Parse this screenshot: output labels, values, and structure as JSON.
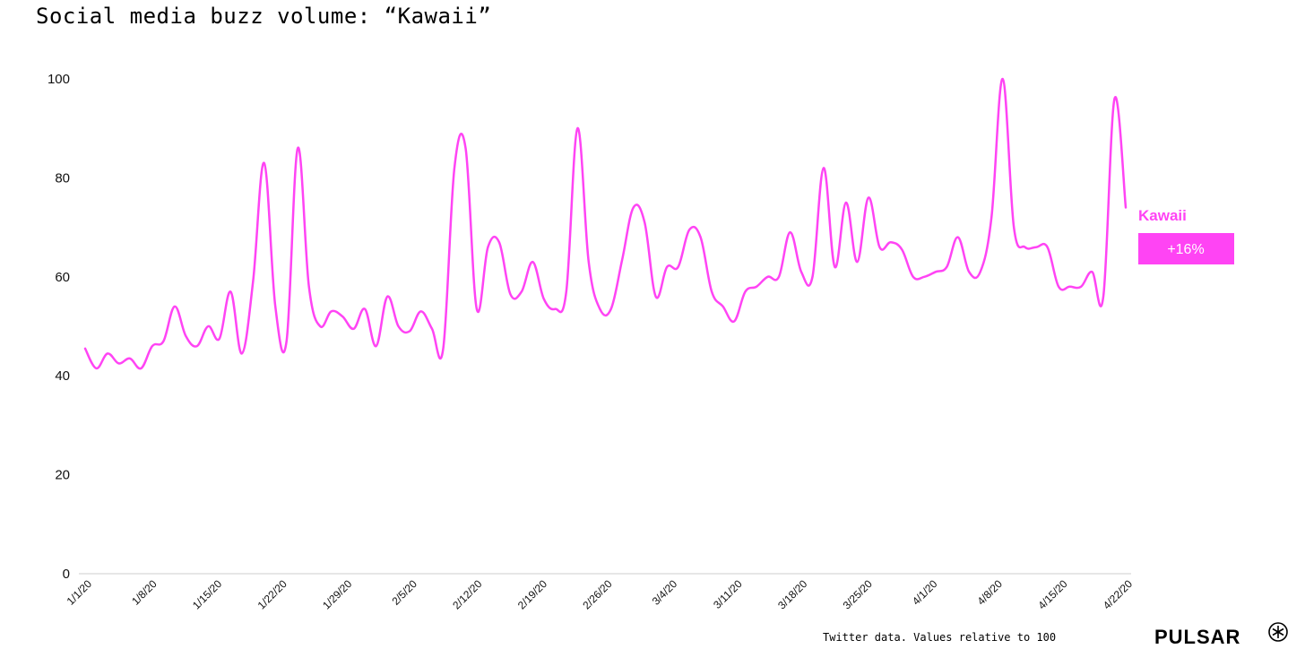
{
  "title": "Social media buzz volume: “Kawaii”",
  "footer_note": "Twitter data. Values relative to 100",
  "logo_text": "PULSAR",
  "colors": {
    "series": "#ff44f4",
    "axis": "#cccccc",
    "text": "#111111"
  },
  "chart_data": {
    "type": "line",
    "title": "Social media buzz volume: “Kawaii”",
    "xlabel": "",
    "ylabel": "",
    "ylim": [
      0,
      100
    ],
    "yticks": [
      0,
      20,
      40,
      60,
      80,
      100
    ],
    "grid": false,
    "xticks": [
      "1/1/20",
      "1/8/20",
      "1/15/20",
      "1/22/20",
      "1/29/20",
      "2/5/20",
      "2/12/20",
      "2/19/20",
      "2/26/20",
      "3/4/20",
      "3/11/20",
      "3/18/20",
      "3/25/20",
      "4/1/20",
      "4/8/20",
      "4/15/20",
      "4/22/20"
    ],
    "series": [
      {
        "name": "Kawaii",
        "change_label": "+16%",
        "values": [
          45.5,
          41.5,
          44.5,
          42.5,
          43.5,
          41.5,
          46,
          47,
          54,
          48,
          46,
          50,
          47.5,
          57,
          44.5,
          59,
          83,
          54,
          47,
          86,
          58,
          50,
          53,
          52,
          49.5,
          53.5,
          46,
          56,
          50,
          49,
          53,
          49.5,
          45.5,
          82,
          86,
          53.5,
          66,
          67,
          56.5,
          57,
          63,
          55.5,
          53.5,
          57,
          90,
          63,
          53.5,
          53.5,
          63.5,
          74,
          71,
          56,
          62,
          62,
          69.5,
          68,
          57,
          54,
          51,
          57,
          58,
          60,
          60,
          69,
          61,
          60,
          82,
          62,
          75,
          63,
          76,
          66,
          67,
          65.5,
          60,
          60,
          61,
          62,
          68,
          61,
          61,
          72,
          100,
          70,
          66,
          66,
          66,
          58,
          58,
          58,
          61,
          56,
          96,
          74
        ]
      }
    ]
  }
}
